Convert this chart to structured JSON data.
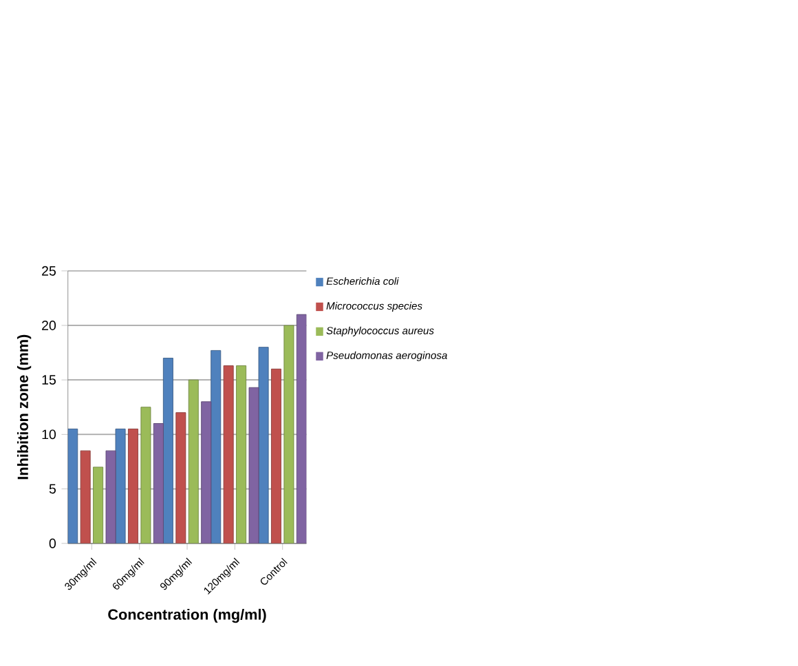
{
  "chart_data": {
    "type": "bar",
    "xlabel": "Concentration (mg/ml)",
    "ylabel": "Inhibition zone (mm)",
    "categories": [
      "30mg/ml",
      "60mg/ml",
      "90mg/ml",
      "120mg/ml",
      "Control"
    ],
    "series": [
      {
        "name": "*Escherichia coli*",
        "color": "#4f81bd",
        "values": [
          10.5,
          10.5,
          17,
          17.7,
          18
        ]
      },
      {
        "name": "*Micrococcus species*",
        "color": "#c0504d",
        "values": [
          8.5,
          10.5,
          12,
          16.3,
          16
        ]
      },
      {
        "name": "*Staphylococcus aureus*",
        "color": "#9bbb59",
        "values": [
          7,
          12.5,
          15,
          16.3,
          20
        ]
      },
      {
        "name": "*Pseudomonas aeroginosa*",
        "color": "#8064a2",
        "values": [
          8.5,
          11,
          13,
          14.3,
          21
        ]
      }
    ],
    "ylim": [
      0,
      25
    ],
    "yticks": [
      0,
      5,
      10,
      15,
      20,
      25
    ],
    "grid": "y",
    "legend": "top right"
  }
}
